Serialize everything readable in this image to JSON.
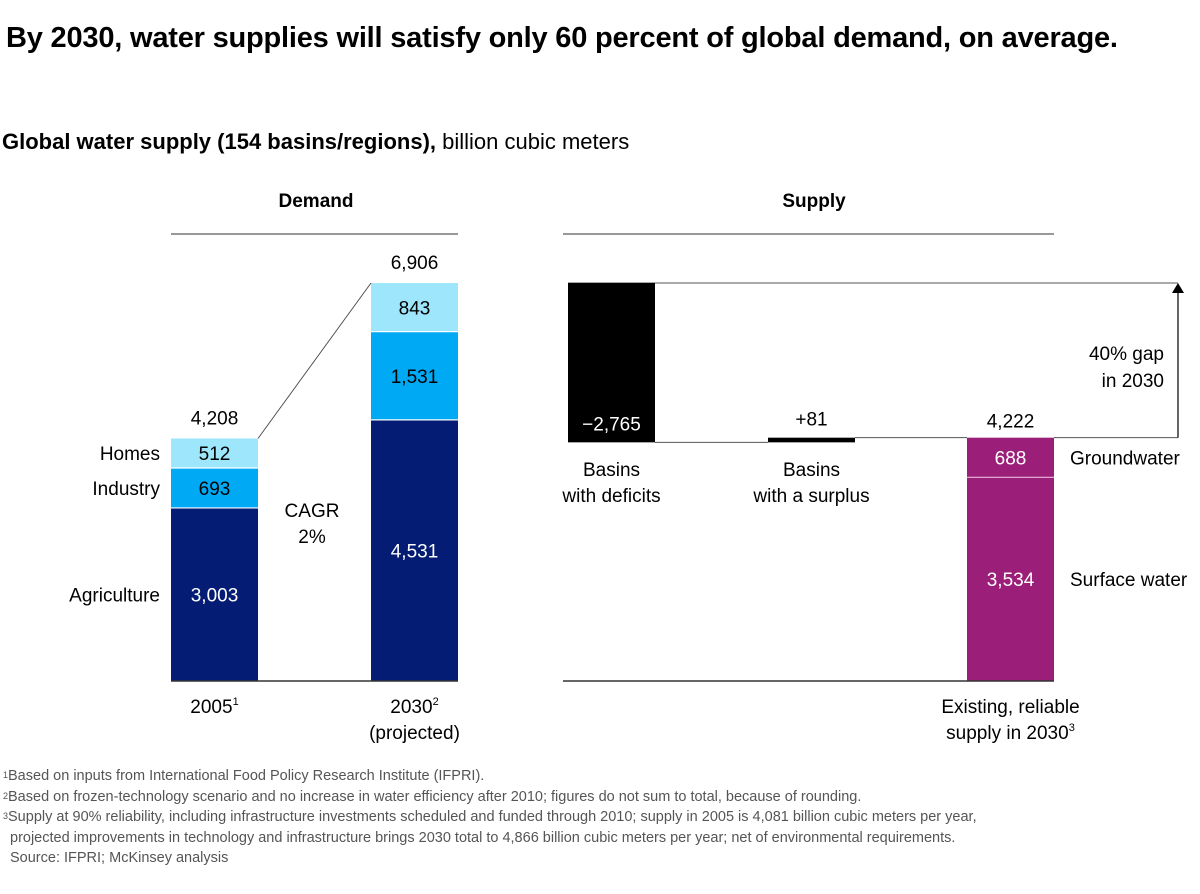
{
  "title": "By 2030, water supplies will satisfy only 60 percent of global demand, on average.",
  "subtitle": {
    "bold": "Global water supply (154 basins/regions),",
    "regular": " billion cubic meters"
  },
  "colors": {
    "homes": "#9de6fc",
    "industry": "#00a9f4",
    "agriculture": "#051c74",
    "deficit": "#000000",
    "supply": "#9b1f79",
    "axis": "#333333",
    "header_rule": "#777777"
  },
  "chart_data": [
    {
      "type": "bar",
      "stacked": true,
      "panel_title": "Demand",
      "categories": [
        "2005",
        "2030"
      ],
      "category_labels": [
        {
          "text": "2005",
          "sup": "1",
          "line2": ""
        },
        {
          "text": "2030",
          "sup": "2",
          "line2": "(projected)"
        }
      ],
      "series": [
        {
          "name": "Agriculture",
          "color_key": "agriculture",
          "values": [
            3003,
            4531
          ],
          "labels": [
            "3,003",
            "4,531"
          ]
        },
        {
          "name": "Industry",
          "color_key": "industry",
          "values": [
            693,
            1531
          ],
          "labels": [
            "693",
            "1,531"
          ]
        },
        {
          "name": "Homes",
          "color_key": "homes",
          "values": [
            512,
            843
          ],
          "labels": [
            "512",
            "843"
          ]
        }
      ],
      "totals": [
        4208,
        6906
      ],
      "total_labels": [
        "4,208",
        "6,906"
      ],
      "annotation": {
        "line1": "CAGR",
        "line2": "2%"
      },
      "ylim": [
        0,
        7000
      ],
      "xlabel": "",
      "ylabel": "",
      "grid": false,
      "legend": "left (inline series labels)"
    },
    {
      "type": "bar",
      "waterfall": true,
      "panel_title": "Supply",
      "start_value": 6906,
      "steps": [
        {
          "name": "Basins with deficits",
          "line1": "Basins",
          "line2": "with deficits",
          "value": -2765,
          "label": "−2,765",
          "color_key": "deficit"
        },
        {
          "name": "Basins with a surplus",
          "line1": "Basins",
          "line2": "with a surplus",
          "value": 81,
          "label": "+81",
          "color_key": "deficit"
        }
      ],
      "final": {
        "name": "Existing, reliable supply in 2030",
        "line1": "Existing, reliable",
        "line2": "supply in 2030",
        "sup": "3",
        "total": 4222,
        "total_label": "4,222",
        "segments": [
          {
            "name": "Surface water",
            "value": 3534,
            "label": "3,534"
          },
          {
            "name": "Groundwater",
            "value": 688,
            "label": "688"
          }
        ]
      },
      "gap_annotation": {
        "line1": "40% gap",
        "line2": "in 2030",
        "percent": 40
      },
      "ylim": [
        0,
        7000
      ],
      "grid": false
    }
  ],
  "footnotes": [
    {
      "sup": "1",
      "text": "Based on inputs from International Food Policy Research Institute (IFPRI)."
    },
    {
      "sup": "2",
      "text": "Based on frozen-technology scenario and no increase in water efficiency after 2010; figures do not sum to total, because of rounding."
    },
    {
      "sup": "3",
      "text": "Supply at 90% reliability, including infrastructure investments scheduled and funded through 2010; supply in 2005 is 4,081 billion cubic meters per year,"
    },
    {
      "sup": "",
      "text": "projected improvements in technology and infrastructure brings 2030 total to 4,866 billion cubic meters per year; net of environmental requirements."
    },
    {
      "sup": "",
      "text": "Source: IFPRI; McKinsey analysis"
    }
  ]
}
